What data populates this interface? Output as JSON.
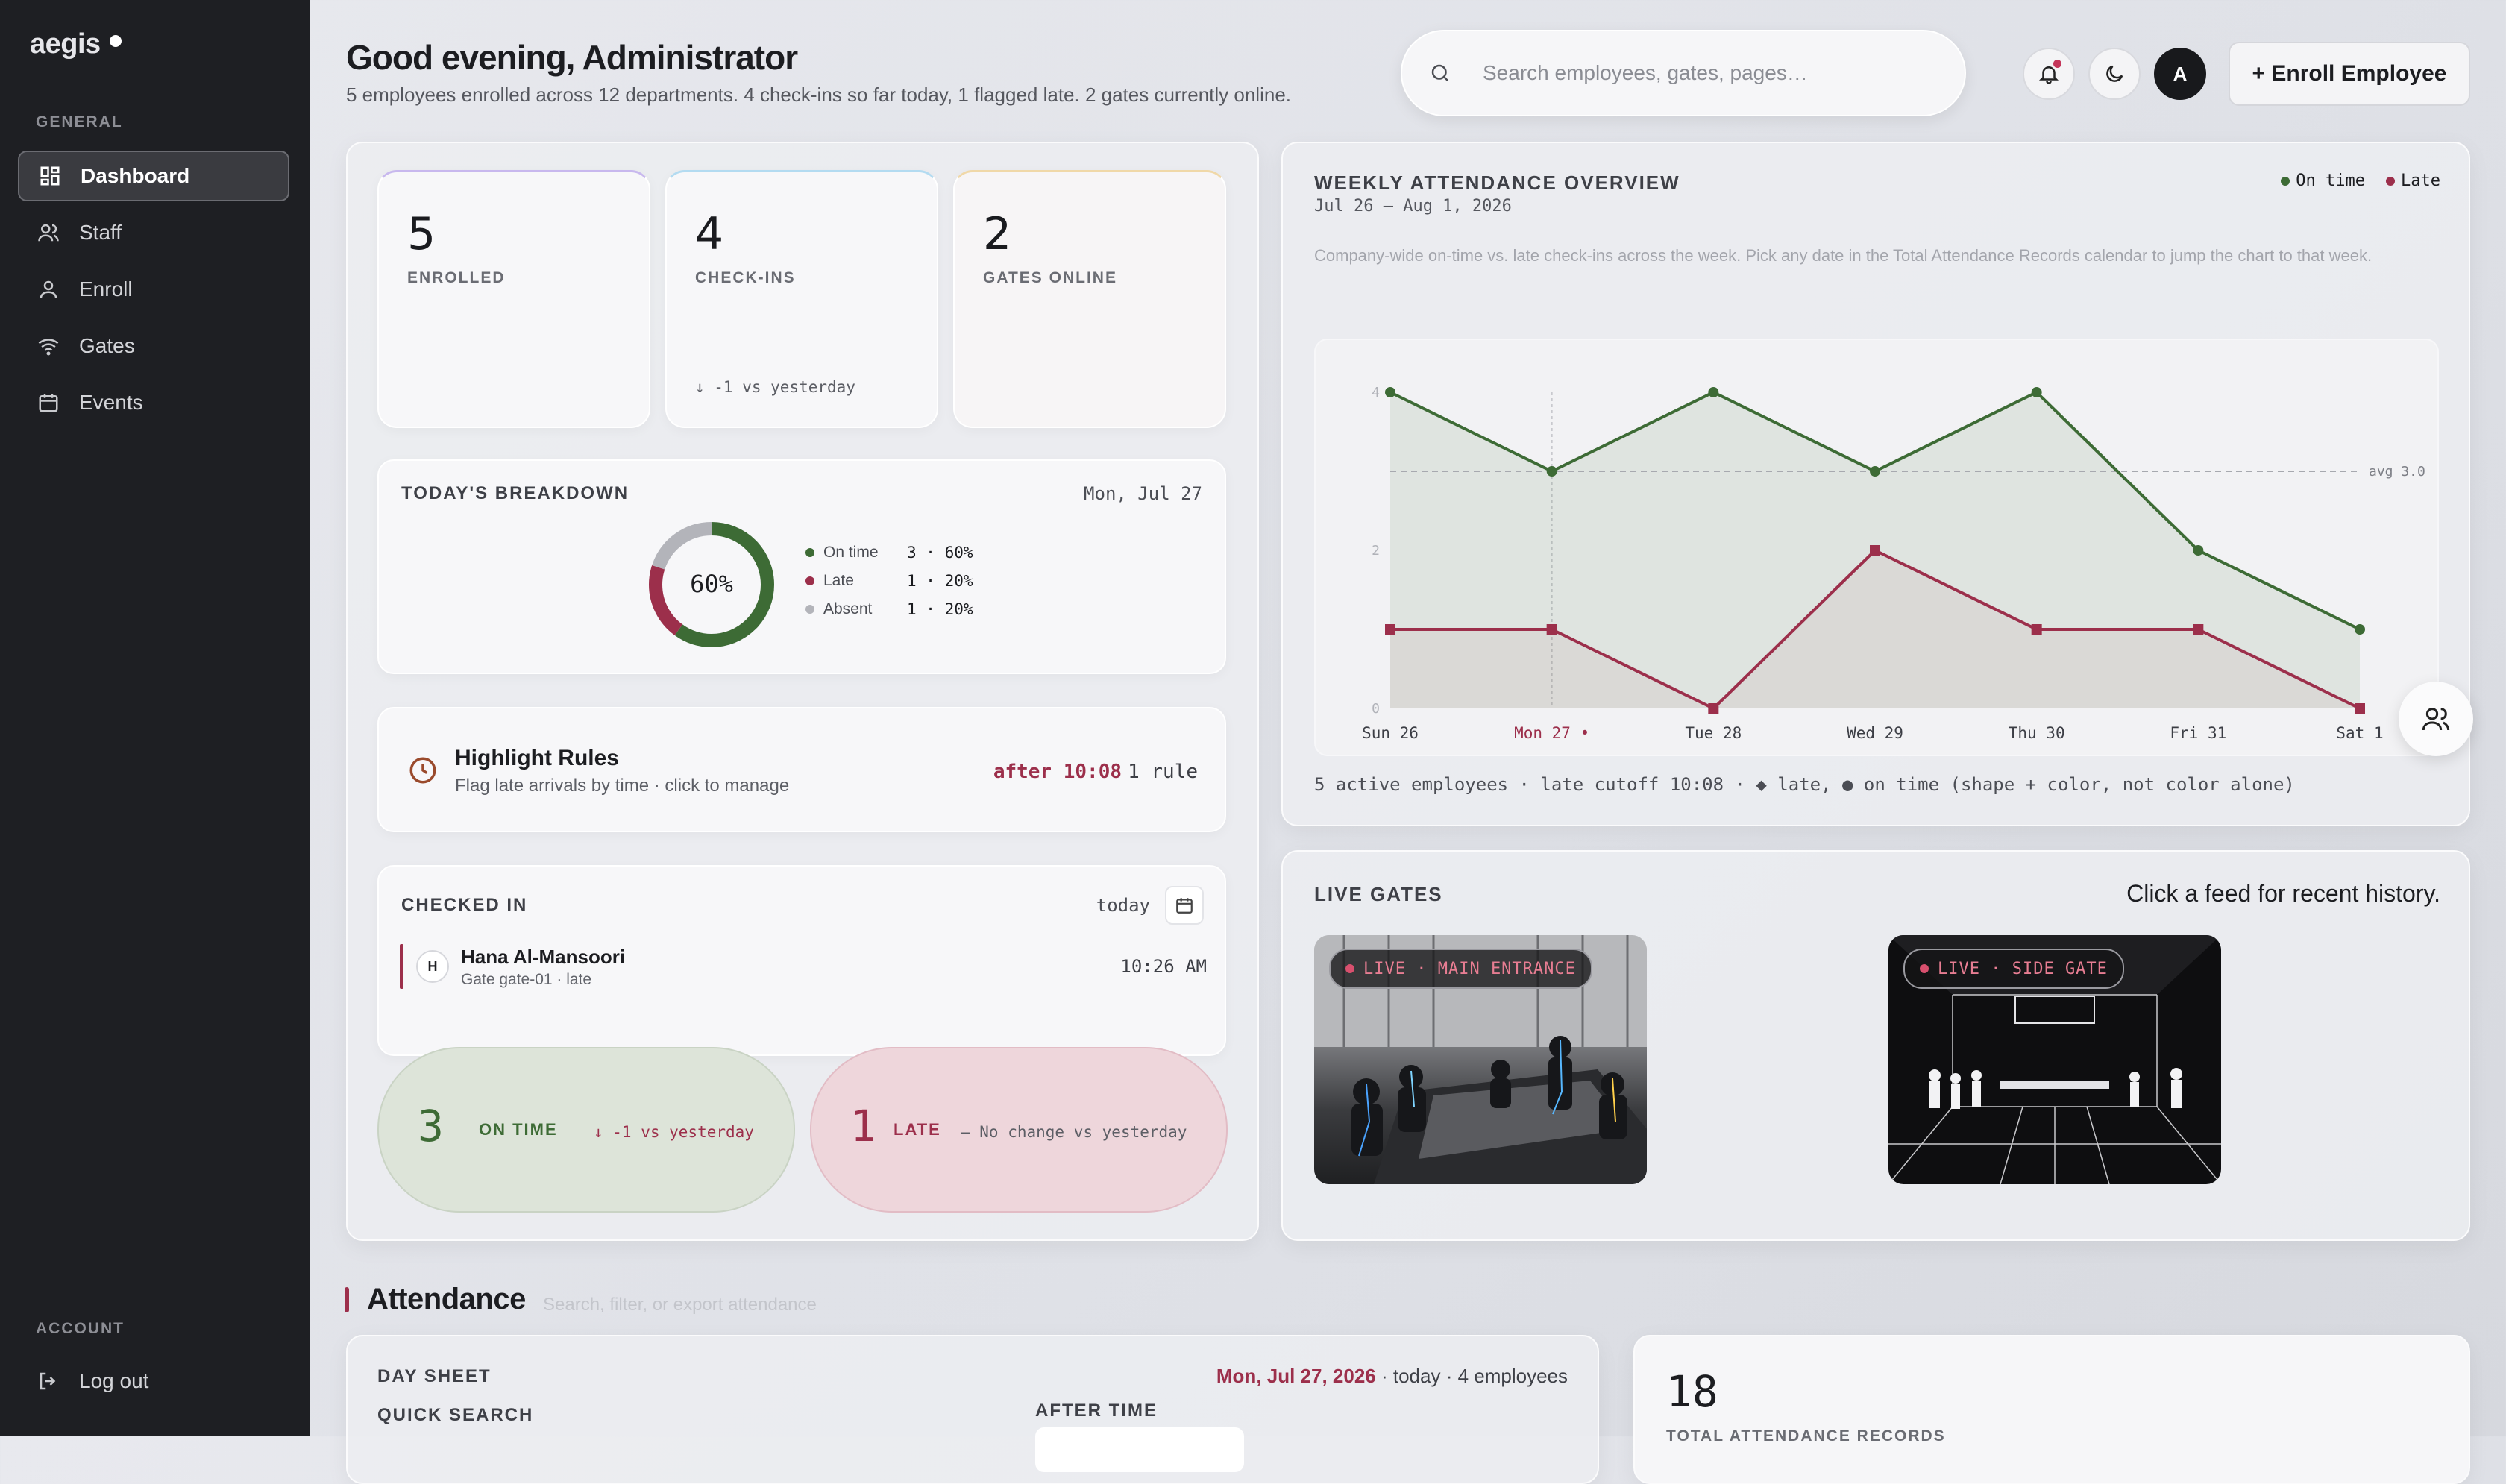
{
  "sidebar": {
    "brand": "aegis",
    "general_label": "GENERAL",
    "items": [
      {
        "label": "Dashboard",
        "icon": "grid-icon",
        "active": true
      },
      {
        "label": "Staff",
        "icon": "users-icon"
      },
      {
        "label": "Enroll",
        "icon": "user-icon"
      },
      {
        "label": "Gates",
        "icon": "wifi-icon"
      },
      {
        "label": "Events",
        "icon": "calendar-icon"
      }
    ],
    "account_label": "ACCOUNT",
    "logout_label": "Log out"
  },
  "header": {
    "greeting": "Good evening, Administrator",
    "subtitle": "5 employees enrolled across 12 departments. 4 check-ins so far today, 1 flagged late. 2 gates currently online.",
    "search_placeholder": "Search employees, gates, pages…",
    "avatar_initial": "A",
    "enroll_label": "+ Enroll Employee"
  },
  "kpis": [
    {
      "value": "5",
      "label": "ENROLLED",
      "accent": "#b9a7e6"
    },
    {
      "value": "4",
      "label": "CHECK-INS",
      "delta": "↓ -1 vs yesterday",
      "accent": "#a6d2ec"
    },
    {
      "value": "2",
      "label": "GATES ONLINE",
      "accent": "#efd3a0"
    }
  ],
  "breakdown": {
    "title": "TODAY'S BREAKDOWN",
    "date": "Mon, Jul 27",
    "center": "60%",
    "rows": [
      {
        "label": "On time",
        "value": "3 · 60%",
        "color": "#3d6b35"
      },
      {
        "label": "Late",
        "value": "1 · 20%",
        "color": "#9c2f4b"
      },
      {
        "label": "Absent",
        "value": "1 · 20%",
        "color": "#b3b4ba"
      }
    ]
  },
  "rules": {
    "title": "Highlight Rules",
    "subtitle": "Flag late arrivals by time · click to manage",
    "threshold": "after 10:08",
    "count": "1 rule"
  },
  "checked_in": {
    "title": "CHECKED IN",
    "range": "today",
    "entries": [
      {
        "initial": "H",
        "name": "Hana Al-Mansoori",
        "detail": "Gate gate-01 · late",
        "time": "10:26 AM"
      }
    ]
  },
  "summary": {
    "on_time": {
      "value": "3",
      "label": "ON TIME",
      "delta": "↓ -1 vs yesterday"
    },
    "late": {
      "value": "1",
      "label": "LATE",
      "delta": "— No change vs yesterday"
    }
  },
  "weekly": {
    "title": "WEEKLY ATTENDANCE OVERVIEW",
    "range": "Jul 26 – Aug 1, 2026",
    "legend_on_time": "On time",
    "legend_late": "Late",
    "description": "Company-wide on-time vs. late check-ins across the week. Pick any date in the Total Attendance Records calendar to jump the chart to that week.",
    "footer": "5 active employees · late cutoff 10:08 · ◆ late, ● on time (shape + color, not color alone)"
  },
  "chart_data": {
    "type": "area",
    "categories": [
      "Sun 26",
      "Mon 27 •",
      "Tue 28",
      "Wed 29",
      "Thu 30",
      "Fri 31",
      "Sat 1"
    ],
    "series": [
      {
        "name": "On time",
        "values": [
          4,
          3,
          4,
          3,
          4,
          2,
          1
        ],
        "color": "#3d6b35"
      },
      {
        "name": "Late",
        "values": [
          1,
          1,
          0,
          2,
          1,
          1,
          0
        ],
        "color": "#9c2f4b"
      }
    ],
    "yticks": [
      "0",
      "2",
      "4"
    ],
    "ylim": [
      0,
      4
    ],
    "avg_value": 3.0,
    "avg_label": "avg 3.0",
    "highlight_category": "Mon 27 •",
    "grid": false
  },
  "gates": {
    "title": "LIVE GATES",
    "hint": "Click a feed for recent history.",
    "feeds": [
      {
        "label": "LIVE · MAIN ENTRANCE"
      },
      {
        "label": "LIVE · SIDE GATE"
      }
    ]
  },
  "attendance": {
    "title": "Attendance",
    "hint": "Search, filter, or export attendance",
    "day_sheet_label": "DAY SHEET",
    "day_sheet_date": "Mon, Jul 27, 2026",
    "day_sheet_meta": " · today · 4 employees",
    "quick_search_label": "QUICK SEARCH",
    "after_time_label": "AFTER TIME",
    "total_value": "18",
    "total_label": "TOTAL ATTENDANCE RECORDS"
  }
}
